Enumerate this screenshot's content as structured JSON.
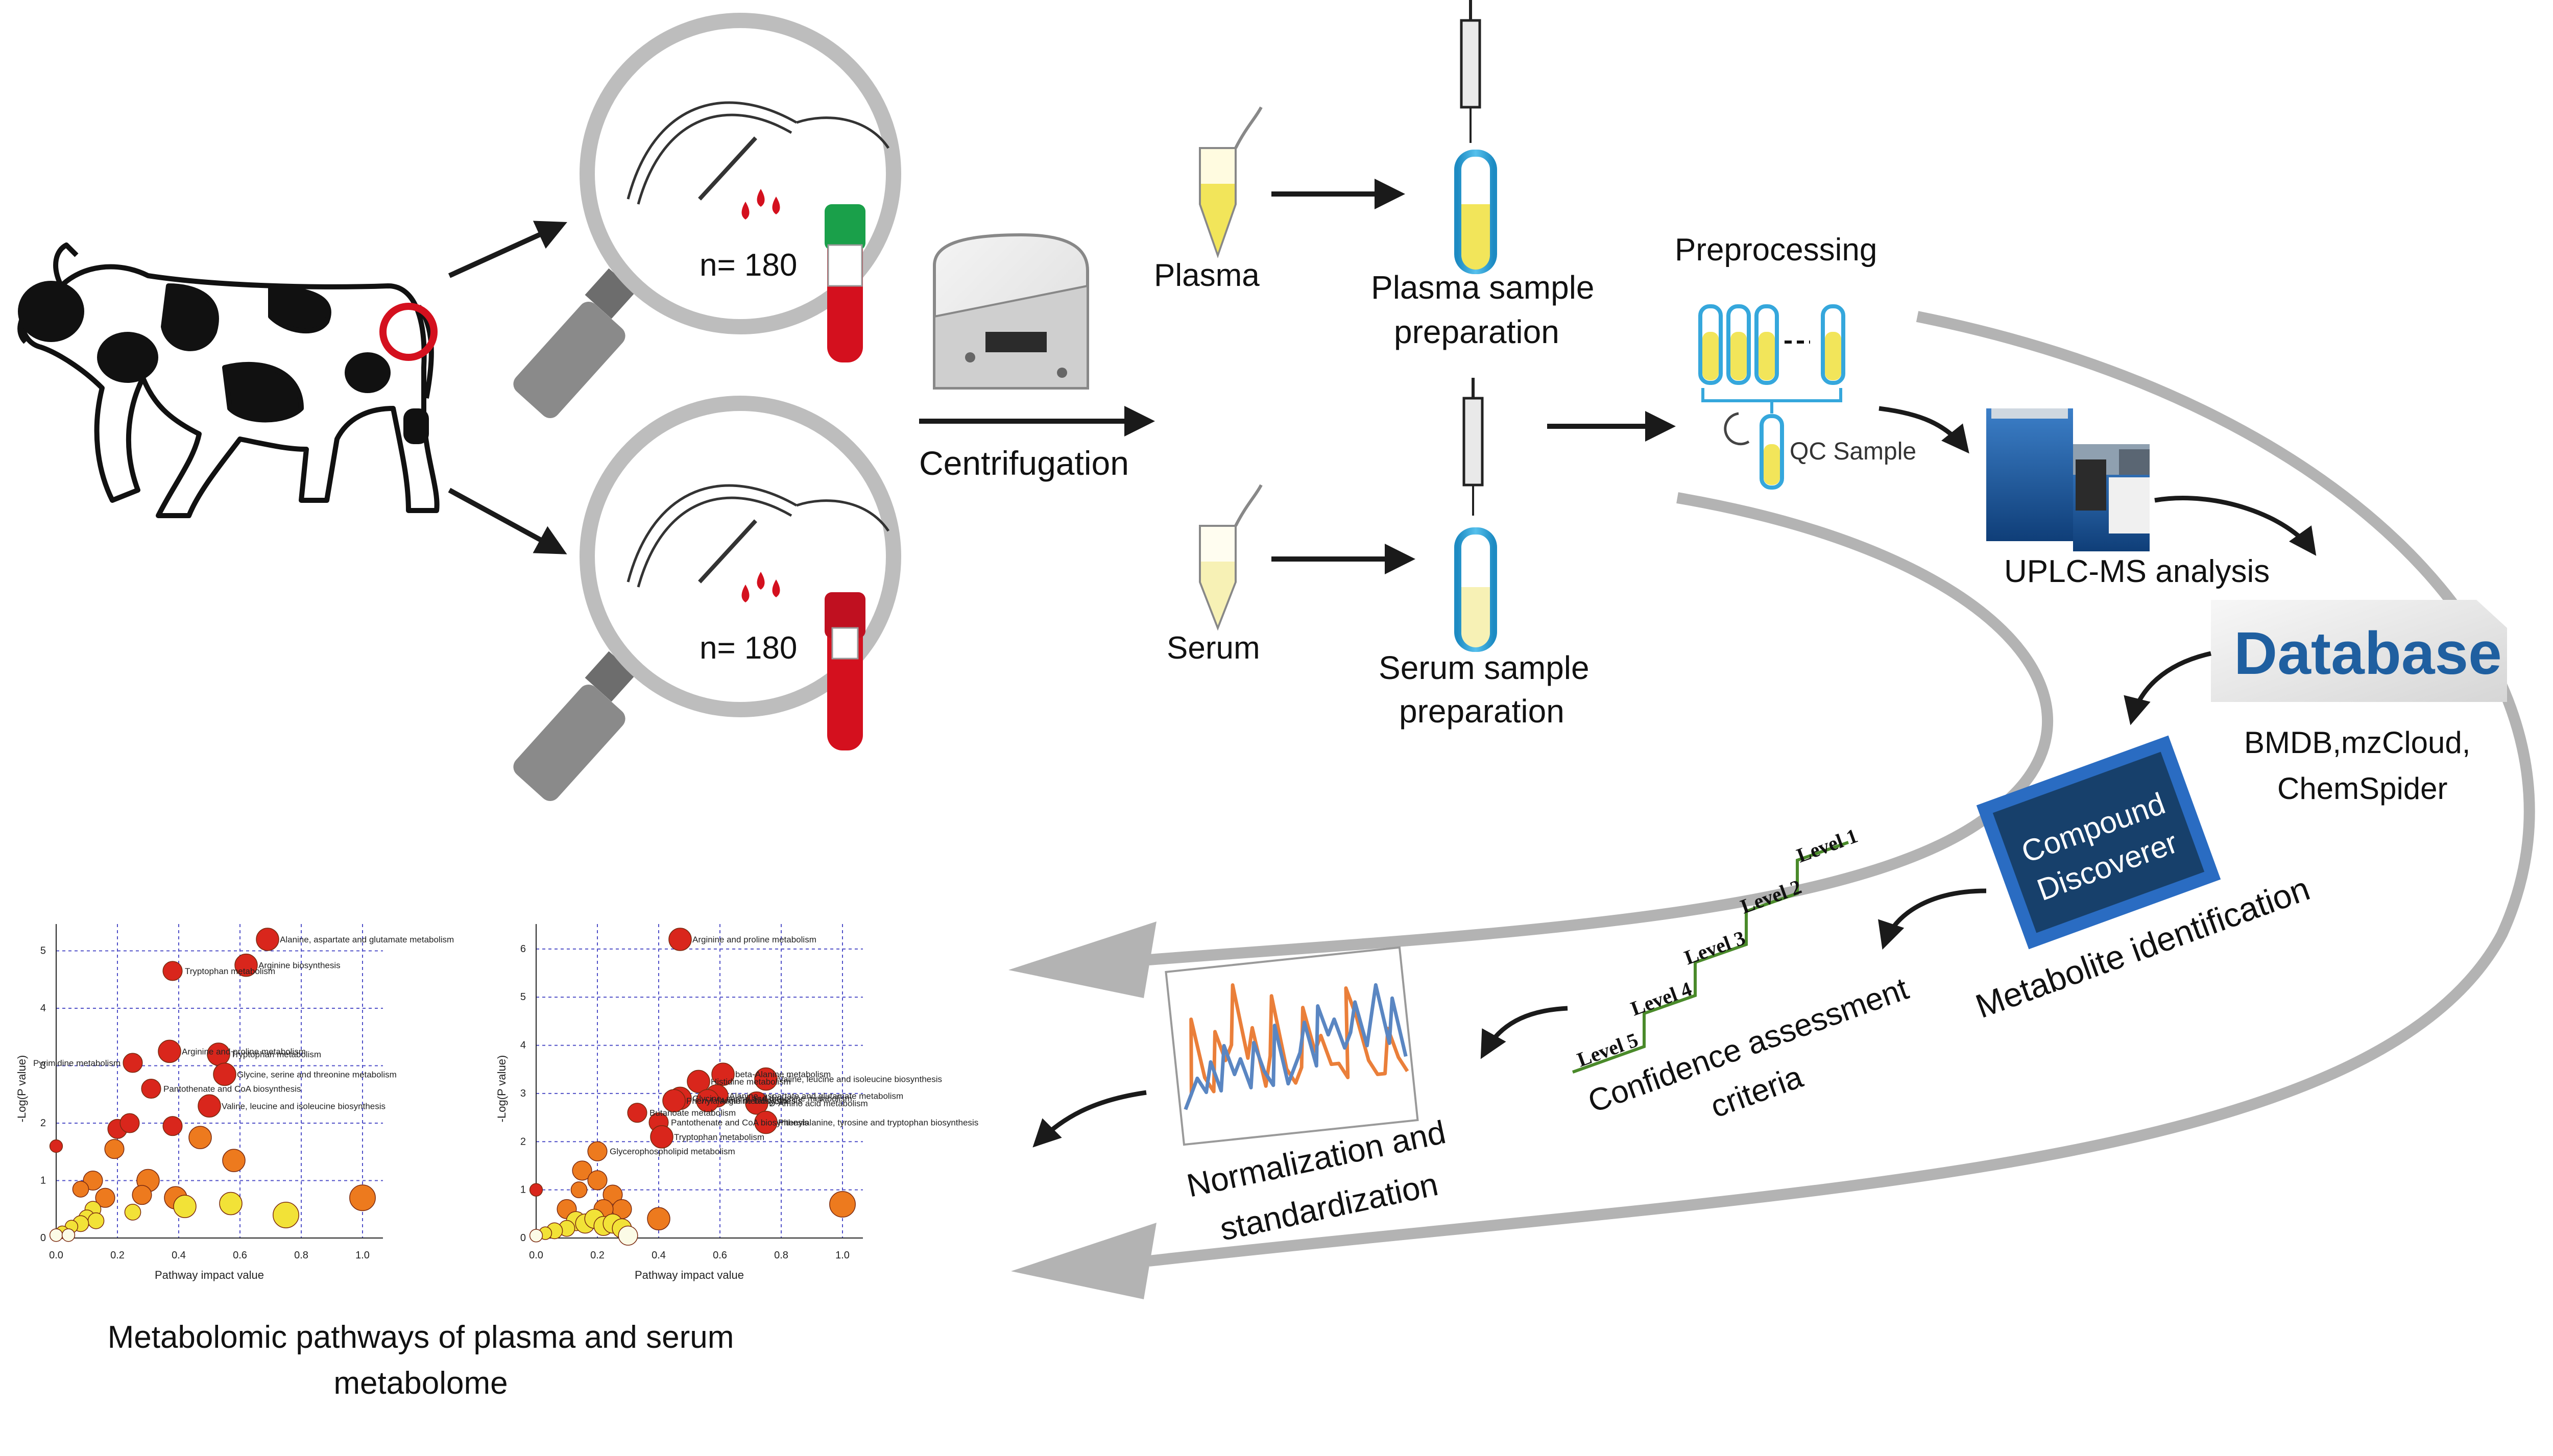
{
  "sampling": {
    "n_top": "n= 180",
    "n_bottom": "n= 180"
  },
  "steps": {
    "centrifugation": "Centrifugation",
    "plasma": "Plasma",
    "serum": "Serum",
    "plasma_prep_1": "Plasma sample",
    "plasma_prep_2": "preparation",
    "serum_prep_1": "Serum sample",
    "serum_prep_2": "preparation",
    "preprocessing": "Preprocessing",
    "qc_sample": "QC Sample",
    "uplc": "UPLC-MS analysis",
    "database_logo": "Database",
    "databases_1": "BMDB,mzCloud,",
    "databases_2": "ChemSpider",
    "compound_1": "Compound",
    "compound_2": "Discoverer",
    "metabolite_identification": "Metabolite identification",
    "levels": [
      "Level 5",
      "Level 4",
      "Level 3",
      "Level 2",
      "Level 1"
    ],
    "confidence_1": "Confidence assessment",
    "confidence_2": "criteria",
    "normalization_1": "Normalization and",
    "normalization_2": "standardization",
    "pathways_1": "Metabolomic pathways of plasma and serum",
    "pathways_2": "metabolome"
  },
  "colors": {
    "arrow_gray": "#b3b3b3",
    "blood_red": "#d4101e",
    "tube_blue": "#35a7dc",
    "plasma_yellow": "#f2e55a",
    "database_blue": "#1f5fa0",
    "compound_border": "#2a6cc2",
    "compound_fill": "#17406b",
    "level_green": "#4a8a2a",
    "plot_red": "#d9261c",
    "plot_orange": "#ed7a1e",
    "plot_yellow": "#f2e237"
  },
  "chart_data": [
    {
      "type": "scatter",
      "title": "",
      "xlabel": "Pathway impact value",
      "ylabel": "-Log(P value)",
      "xlim": [
        0,
        1
      ],
      "ylim": [
        0,
        5.2
      ],
      "xticks": [
        "0.0",
        "0.2",
        "0.4",
        "0.6",
        "0.8",
        "1.0"
      ],
      "yticks": [
        "0",
        "1",
        "2",
        "3",
        "4",
        "5"
      ],
      "labeled_points": [
        {
          "label": "Alanine, aspartate and glutamate metabolism",
          "x": 0.69,
          "y": 5.2,
          "size": 5,
          "color": "red"
        },
        {
          "label": "Arginine biosynthesis",
          "x": 0.62,
          "y": 4.75,
          "size": 5,
          "color": "red"
        },
        {
          "label": "Tryptophan metabolism",
          "x": 0.38,
          "y": 4.65,
          "size": 4,
          "color": "red"
        },
        {
          "label": "Arginine and proline metabolism",
          "x": 0.37,
          "y": 3.25,
          "size": 5,
          "color": "red"
        },
        {
          "label": "Tryptophan metabolism",
          "x": 0.53,
          "y": 3.2,
          "size": 5,
          "color": "red"
        },
        {
          "label": "Pyrimidine metabolism",
          "x": 0.25,
          "y": 3.05,
          "size": 4,
          "color": "red"
        },
        {
          "label": "Glycine, serine and threonine metabolism",
          "x": 0.55,
          "y": 2.85,
          "size": 5,
          "color": "red"
        },
        {
          "label": "Pantothenate and CoA biosynthesis",
          "x": 0.31,
          "y": 2.6,
          "size": 4,
          "color": "red"
        },
        {
          "label": "Valine, leucine and isoleucine biosynthesis",
          "x": 0.5,
          "y": 2.3,
          "size": 5,
          "color": "red"
        }
      ],
      "other_points": [
        {
          "x": 0.0,
          "y": 1.6,
          "size": 2,
          "color": "red"
        },
        {
          "x": 0.2,
          "y": 1.9,
          "size": 4,
          "color": "red"
        },
        {
          "x": 0.24,
          "y": 2.0,
          "size": 4,
          "color": "red"
        },
        {
          "x": 0.38,
          "y": 1.95,
          "size": 4,
          "color": "red"
        },
        {
          "x": 0.47,
          "y": 1.75,
          "size": 5,
          "color": "orange"
        },
        {
          "x": 0.58,
          "y": 1.35,
          "size": 5,
          "color": "orange"
        },
        {
          "x": 0.19,
          "y": 1.55,
          "size": 4,
          "color": "orange"
        },
        {
          "x": 0.12,
          "y": 1.0,
          "size": 4,
          "color": "orange"
        },
        {
          "x": 0.3,
          "y": 1.0,
          "size": 5,
          "color": "orange"
        },
        {
          "x": 0.28,
          "y": 0.75,
          "size": 4,
          "color": "orange"
        },
        {
          "x": 0.39,
          "y": 0.7,
          "size": 5,
          "color": "orange"
        },
        {
          "x": 0.08,
          "y": 0.85,
          "size": 3,
          "color": "orange"
        },
        {
          "x": 0.16,
          "y": 0.7,
          "size": 4,
          "color": "orange"
        },
        {
          "x": 0.42,
          "y": 0.55,
          "size": 5,
          "color": "yellow"
        },
        {
          "x": 0.57,
          "y": 0.6,
          "size": 5,
          "color": "yellow"
        },
        {
          "x": 0.75,
          "y": 0.4,
          "size": 6,
          "color": "yellow"
        },
        {
          "x": 1.0,
          "y": 0.7,
          "size": 6,
          "color": "orange"
        },
        {
          "x": 0.25,
          "y": 0.45,
          "size": 3,
          "color": "yellow"
        },
        {
          "x": 0.12,
          "y": 0.5,
          "size": 3,
          "color": "yellow"
        },
        {
          "x": 0.1,
          "y": 0.35,
          "size": 3,
          "color": "yellow"
        },
        {
          "x": 0.13,
          "y": 0.3,
          "size": 3,
          "color": "yellow"
        },
        {
          "x": 0.08,
          "y": 0.25,
          "size": 3,
          "color": "yellow"
        },
        {
          "x": 0.05,
          "y": 0.2,
          "size": 2,
          "color": "yellow"
        },
        {
          "x": 0.02,
          "y": 0.1,
          "size": 2,
          "color": "yellow"
        },
        {
          "x": 0.0,
          "y": 0.05,
          "size": 2,
          "color": "white"
        },
        {
          "x": 0.04,
          "y": 0.05,
          "size": 2,
          "color": "white"
        }
      ]
    },
    {
      "type": "scatter",
      "title": "",
      "xlabel": "Pathway impact value",
      "ylabel": "-Log(P value)",
      "xlim": [
        0,
        1
      ],
      "ylim": [
        0,
        6.2
      ],
      "xticks": [
        "0.0",
        "0.2",
        "0.4",
        "0.6",
        "0.8",
        "1.0"
      ],
      "yticks": [
        "0",
        "1",
        "2",
        "3",
        "4",
        "5",
        "6"
      ],
      "labeled_points": [
        {
          "label": "Arginine and proline metabolism",
          "x": 0.47,
          "y": 6.2,
          "size": 5,
          "color": "red"
        },
        {
          "label": "beta-Alanine metabolism",
          "x": 0.61,
          "y": 3.4,
          "size": 5,
          "color": "red"
        },
        {
          "label": "Histidine metabolism",
          "x": 0.53,
          "y": 3.25,
          "size": 5,
          "color": "red"
        },
        {
          "label": "Valine, leucine and isoleucine biosynthesis",
          "x": 0.75,
          "y": 3.3,
          "size": 5,
          "color": "red"
        },
        {
          "label": "Glycine, serine and threonine metabolism",
          "x": 0.47,
          "y": 2.9,
          "size": 5,
          "color": "red"
        },
        {
          "label": "Alanine, aspartate and glutamate metabolism",
          "x": 0.59,
          "y": 2.95,
          "size": 5,
          "color": "red"
        },
        {
          "label": "Phenylalanine metabolism",
          "x": 0.45,
          "y": 2.85,
          "size": 5,
          "color": "red"
        },
        {
          "label": "D-Amino acid metabolism",
          "x": 0.72,
          "y": 2.8,
          "size": 5,
          "color": "red"
        },
        {
          "label": "Butanoate metabolism",
          "x": 0.33,
          "y": 2.6,
          "size": 4,
          "color": "red"
        },
        {
          "label": "Arginine biosynthesis",
          "x": 0.56,
          "y": 2.85,
          "size": 5,
          "color": "red"
        },
        {
          "label": "Pantothenate and CoA biosynthesis",
          "x": 0.4,
          "y": 2.4,
          "size": 4,
          "color": "red"
        },
        {
          "label": "Tryptophan metabolism",
          "x": 0.41,
          "y": 2.1,
          "size": 5,
          "color": "red"
        },
        {
          "label": "Phenylalanine, tyrosine and tryptophan biosynthesis",
          "x": 0.75,
          "y": 2.4,
          "size": 5,
          "color": "red"
        },
        {
          "label": "Glycerophospholipid metabolism",
          "x": 0.2,
          "y": 1.8,
          "size": 4,
          "color": "orange"
        }
      ],
      "other_points": [
        {
          "x": 0.0,
          "y": 1.0,
          "size": 2,
          "color": "red"
        },
        {
          "x": 0.15,
          "y": 1.4,
          "size": 4,
          "color": "orange"
        },
        {
          "x": 0.14,
          "y": 1.0,
          "size": 3,
          "color": "orange"
        },
        {
          "x": 0.2,
          "y": 1.2,
          "size": 4,
          "color": "orange"
        },
        {
          "x": 0.25,
          "y": 0.9,
          "size": 4,
          "color": "orange"
        },
        {
          "x": 0.28,
          "y": 0.6,
          "size": 4,
          "color": "orange"
        },
        {
          "x": 0.22,
          "y": 0.6,
          "size": 4,
          "color": "orange"
        },
        {
          "x": 0.1,
          "y": 0.6,
          "size": 4,
          "color": "orange"
        },
        {
          "x": 0.4,
          "y": 0.4,
          "size": 5,
          "color": "orange"
        },
        {
          "x": 1.0,
          "y": 0.7,
          "size": 6,
          "color": "orange"
        },
        {
          "x": 0.13,
          "y": 0.35,
          "size": 4,
          "color": "yellow"
        },
        {
          "x": 0.16,
          "y": 0.3,
          "size": 4,
          "color": "yellow"
        },
        {
          "x": 0.19,
          "y": 0.4,
          "size": 4,
          "color": "yellow"
        },
        {
          "x": 0.22,
          "y": 0.25,
          "size": 4,
          "color": "yellow"
        },
        {
          "x": 0.25,
          "y": 0.3,
          "size": 4,
          "color": "yellow"
        },
        {
          "x": 0.28,
          "y": 0.2,
          "size": 4,
          "color": "yellow"
        },
        {
          "x": 0.3,
          "y": 0.05,
          "size": 4,
          "color": "white"
        },
        {
          "x": 0.1,
          "y": 0.2,
          "size": 3,
          "color": "yellow"
        },
        {
          "x": 0.06,
          "y": 0.15,
          "size": 3,
          "color": "yellow"
        },
        {
          "x": 0.03,
          "y": 0.1,
          "size": 2,
          "color": "yellow"
        },
        {
          "x": 0.0,
          "y": 0.05,
          "size": 2,
          "color": "white"
        }
      ]
    },
    {
      "type": "line",
      "title": "",
      "xlabel": "",
      "ylabel": "",
      "series": [
        {
          "color": "#ea7f3a",
          "values": [
            2,
            3,
            8,
            4,
            3,
            7,
            5,
            6,
            10,
            5,
            7,
            3,
            5,
            9,
            4,
            3,
            4,
            8,
            5,
            6,
            4,
            4,
            3,
            9,
            7,
            4,
            3,
            3,
            6,
            4,
            3
          ]
        },
        {
          "color": "#5a86c2",
          "values": [
            2,
            3,
            4,
            3,
            5,
            3,
            6,
            4,
            5,
            3,
            6,
            4,
            3,
            7,
            3,
            4,
            5,
            7,
            4,
            8,
            6,
            7,
            5,
            6,
            8,
            5,
            7,
            9,
            5,
            8,
            4
          ]
        }
      ]
    }
  ]
}
